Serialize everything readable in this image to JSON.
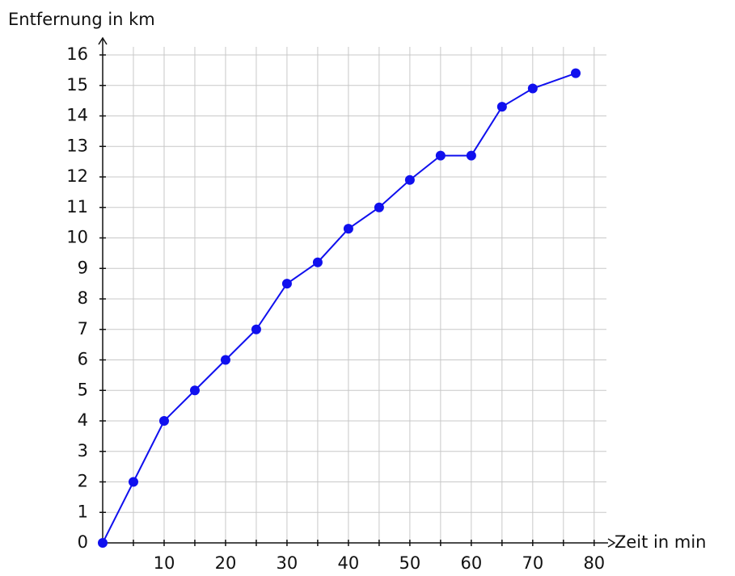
{
  "chart_data": {
    "type": "line",
    "xlabel": "Zeit in min",
    "ylabel": "Entfernung in km",
    "x": [
      0,
      5,
      10,
      15,
      20,
      25,
      30,
      35,
      40,
      45,
      50,
      55,
      60,
      65,
      70,
      77
    ],
    "series": [
      {
        "color": "#1010ee",
        "values": [
          0,
          2,
          4,
          5,
          6,
          7,
          8.5,
          9.2,
          10.3,
          11,
          11.9,
          12.7,
          12.7,
          14.3,
          14.9,
          15.4
        ]
      }
    ],
    "xlim": [
      0,
      82
    ],
    "ylim": [
      0,
      16
    ],
    "xticks": [
      10,
      20,
      30,
      40,
      50,
      60,
      70,
      80
    ],
    "xminor_ticks": [
      5,
      15,
      25,
      35,
      45,
      55,
      65,
      75
    ],
    "yticks": [
      0,
      1,
      2,
      3,
      4,
      5,
      6,
      7,
      8,
      9,
      10,
      11,
      12,
      13,
      14,
      15,
      16
    ],
    "grid": true,
    "markers": true
  }
}
